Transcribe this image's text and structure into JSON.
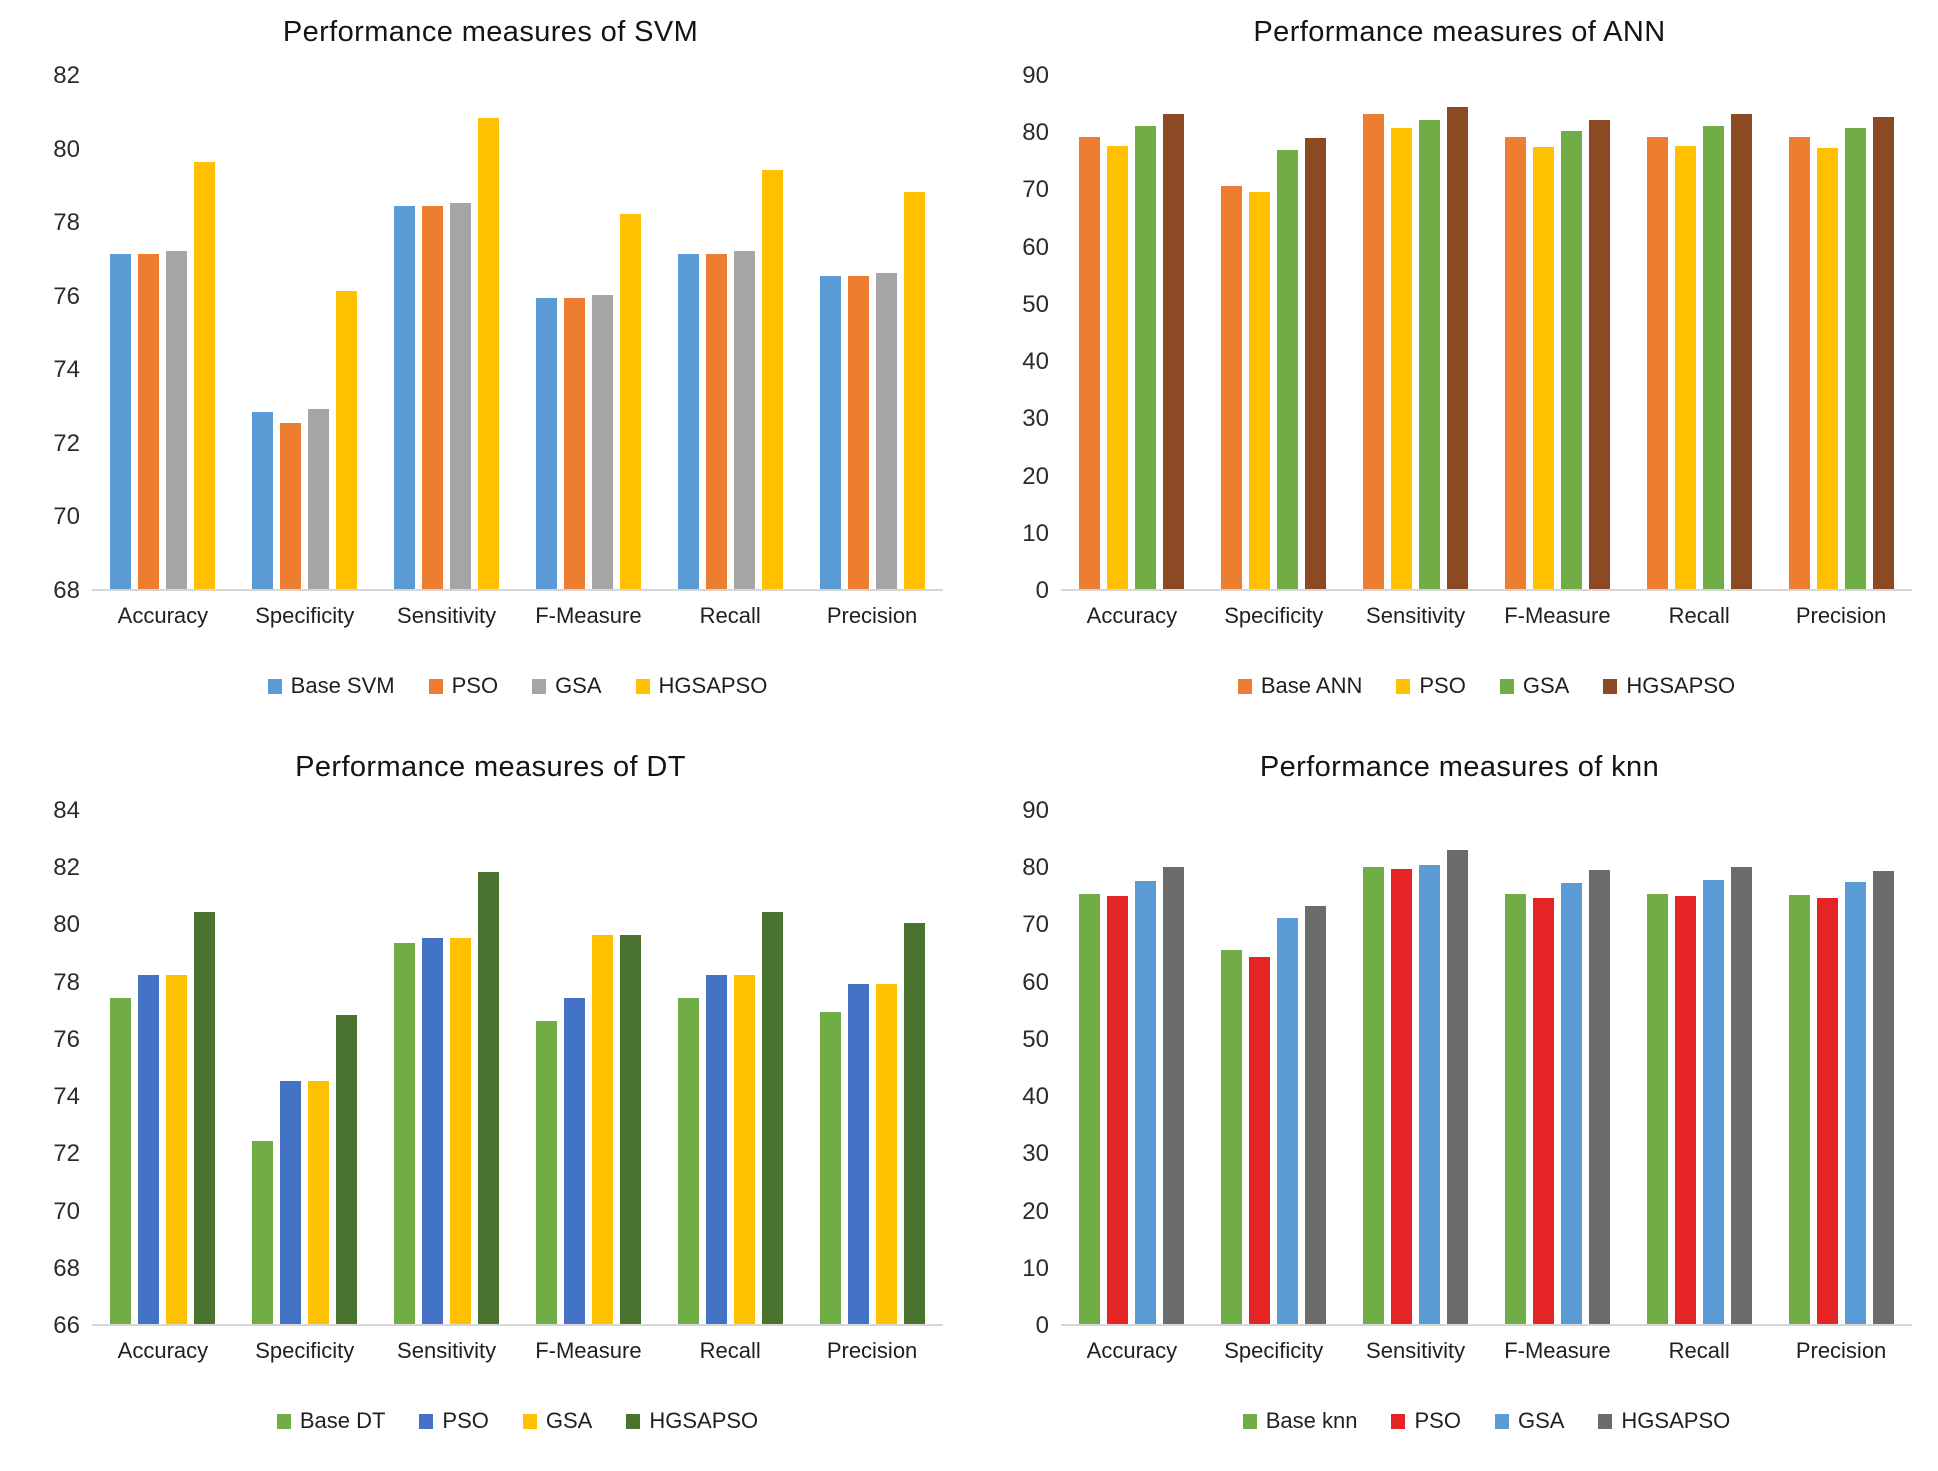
{
  "chart_data": [
    {
      "type": "bar",
      "title": "Performance measures of SVM",
      "categories": [
        "Accuracy",
        "Specificity",
        "Sensitivity",
        "F-Measure",
        "Recall",
        "Precision"
      ],
      "series": [
        {
          "name": "Base SVM",
          "color": "#5B9BD5",
          "values": [
            77.1,
            72.8,
            78.4,
            75.9,
            77.1,
            76.5
          ]
        },
        {
          "name": "PSO",
          "color": "#ED7D31",
          "values": [
            77.1,
            72.5,
            78.4,
            75.9,
            77.1,
            76.5
          ]
        },
        {
          "name": "GSA",
          "color": "#A5A5A5",
          "values": [
            77.2,
            72.9,
            78.5,
            76.0,
            77.2,
            76.6
          ]
        },
        {
          "name": "HGSAPSO",
          "color": "#FFC000",
          "values": [
            79.6,
            76.1,
            80.8,
            78.2,
            79.4,
            78.8
          ]
        }
      ],
      "ylim": [
        68,
        82
      ],
      "ytick_step": 2,
      "grid": "off",
      "legend_position": "bottom"
    },
    {
      "type": "bar",
      "title": "Performance measures of ANN",
      "categories": [
        "Accuracy",
        "Specificity",
        "Sensitivity",
        "F-Measure",
        "Recall",
        "Precision"
      ],
      "series": [
        {
          "name": "Base ANN",
          "color": "#ED7D31",
          "values": [
            79.0,
            70.5,
            83.0,
            79.0,
            79.0,
            79.0
          ]
        },
        {
          "name": "PSO",
          "color": "#FFC000",
          "values": [
            77.5,
            69.3,
            80.5,
            77.3,
            77.5,
            77.0
          ]
        },
        {
          "name": "GSA",
          "color": "#70AD47",
          "values": [
            81.0,
            76.8,
            82.0,
            80.0,
            81.0,
            80.5
          ]
        },
        {
          "name": "HGSAPSO",
          "color": "#8B4A24",
          "values": [
            83.0,
            78.8,
            84.3,
            82.0,
            83.0,
            82.5
          ]
        }
      ],
      "ylim": [
        0,
        90
      ],
      "ytick_step": 10,
      "grid": "off",
      "legend_position": "bottom"
    },
    {
      "type": "bar",
      "title": "Performance measures of DT",
      "categories": [
        "Accuracy",
        "Specificity",
        "Sensitivity",
        "F-Measure",
        "Recall",
        "Precision"
      ],
      "series": [
        {
          "name": "Base DT",
          "color": "#70AD47",
          "values": [
            77.4,
            72.4,
            79.3,
            76.6,
            77.4,
            76.9
          ]
        },
        {
          "name": "PSO",
          "color": "#4472C4",
          "values": [
            78.2,
            74.5,
            79.5,
            77.4,
            78.2,
            77.9
          ]
        },
        {
          "name": "GSA",
          "color": "#FFC000",
          "values": [
            78.2,
            74.5,
            79.5,
            79.6,
            78.2,
            77.9
          ]
        },
        {
          "name": "HGSAPSO",
          "color": "#4A7330",
          "values": [
            80.4,
            76.8,
            81.8,
            79.6,
            80.4,
            80.0
          ]
        }
      ],
      "ylim": [
        66,
        84
      ],
      "ytick_step": 2,
      "grid": "off",
      "legend_position": "bottom"
    },
    {
      "type": "bar",
      "title": "Performance measures of knn",
      "categories": [
        "Accuracy",
        "Specificity",
        "Sensitivity",
        "F-Measure",
        "Recall",
        "Precision"
      ],
      "series": [
        {
          "name": "Base knn",
          "color": "#70AD47",
          "values": [
            75.2,
            65.3,
            79.9,
            75.2,
            75.2,
            74.9
          ]
        },
        {
          "name": "PSO",
          "color": "#E52525",
          "values": [
            74.8,
            64.2,
            79.5,
            74.4,
            74.8,
            74.5
          ]
        },
        {
          "name": "GSA",
          "color": "#5B9BD5",
          "values": [
            77.5,
            70.9,
            80.3,
            77.1,
            77.6,
            77.2
          ]
        },
        {
          "name": "HGSAPSO",
          "color": "#6B6B6B",
          "values": [
            79.8,
            73.0,
            82.8,
            79.4,
            79.9,
            79.1
          ]
        }
      ],
      "ylim": [
        0,
        90
      ],
      "ytick_step": 10,
      "grid": "off",
      "legend_position": "bottom"
    }
  ]
}
